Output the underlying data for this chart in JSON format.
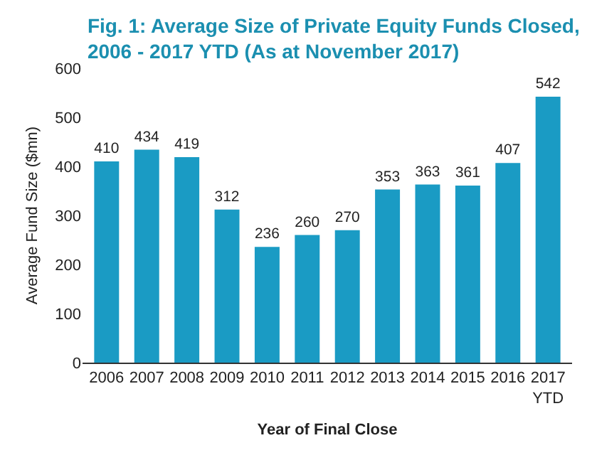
{
  "chart_data": {
    "type": "bar",
    "title": "Fig. 1: Average Size of Private Equity Funds Closed, 2006 - 2017 YTD (As at November 2017)",
    "xlabel": "Year of Final Close",
    "ylabel": "Average Fund Size ($mn)",
    "categories": [
      "2006",
      "2007",
      "2008",
      "2009",
      "2010",
      "2011",
      "2012",
      "2013",
      "2014",
      "2015",
      "2016",
      "2017 YTD"
    ],
    "values": [
      410,
      434,
      419,
      312,
      236,
      260,
      270,
      353,
      363,
      361,
      407,
      542
    ],
    "color": "#1a9bc4",
    "ylim": [
      0,
      600
    ],
    "yticks": [
      0,
      100,
      200,
      300,
      400,
      500,
      600
    ],
    "grid": false,
    "data_labels": true
  }
}
